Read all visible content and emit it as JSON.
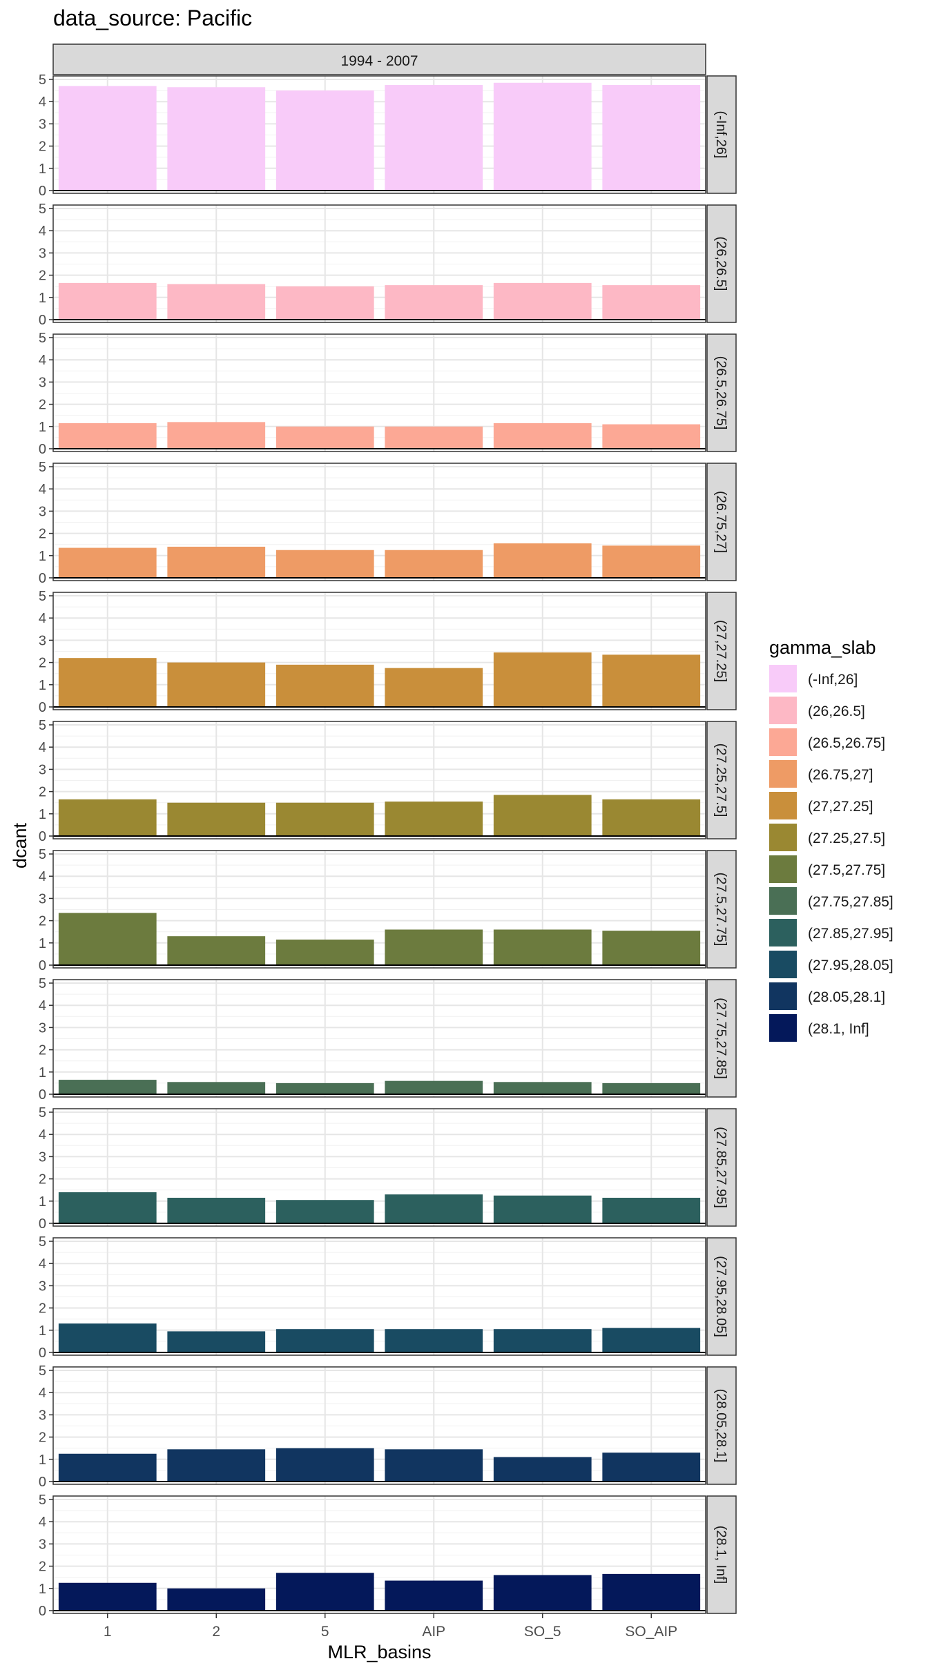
{
  "chart_data": {
    "type": "bar",
    "title": "data_source: Pacific",
    "column_strip": "1994 - 2007",
    "xlabel": "MLR_basins",
    "ylabel": "dcant",
    "categories": [
      "1",
      "2",
      "5",
      "AIP",
      "SO_5",
      "SO_AIP"
    ],
    "ylim": [
      0,
      5
    ],
    "yticks": [
      0,
      1,
      2,
      3,
      4,
      5
    ],
    "grid": true,
    "legend": {
      "title": "gamma_slab",
      "position": "right"
    },
    "series": [
      {
        "name": "(-Inf,26]",
        "color": "#F8CBF9",
        "values": [
          4.7,
          4.65,
          4.5,
          4.75,
          4.85,
          4.75
        ]
      },
      {
        "name": "(26,26.5]",
        "color": "#FDB8C5",
        "values": [
          1.65,
          1.6,
          1.5,
          1.55,
          1.65,
          1.55
        ]
      },
      {
        "name": "(26.5,26.75]",
        "color": "#FCA895",
        "values": [
          1.15,
          1.2,
          1.0,
          1.0,
          1.15,
          1.1
        ]
      },
      {
        "name": "(26.75,27]",
        "color": "#EE9B65",
        "values": [
          1.35,
          1.4,
          1.25,
          1.25,
          1.55,
          1.45
        ]
      },
      {
        "name": "(27,27.25]",
        "color": "#C98F3B",
        "values": [
          2.2,
          2.0,
          1.9,
          1.75,
          2.45,
          2.35
        ]
      },
      {
        "name": "(27.25,27.5]",
        "color": "#9A8832",
        "values": [
          1.65,
          1.5,
          1.5,
          1.55,
          1.85,
          1.65
        ]
      },
      {
        "name": "(27.5,27.75]",
        "color": "#6C7B3E",
        "values": [
          2.35,
          1.3,
          1.15,
          1.6,
          1.6,
          1.55
        ]
      },
      {
        "name": "(27.75,27.85]",
        "color": "#4A6F55",
        "values": [
          0.65,
          0.55,
          0.5,
          0.6,
          0.55,
          0.5
        ]
      },
      {
        "name": "(27.85,27.95]",
        "color": "#2C605E",
        "values": [
          1.4,
          1.15,
          1.05,
          1.3,
          1.25,
          1.15
        ]
      },
      {
        "name": "(27.95,28.05]",
        "color": "#194B62",
        "values": [
          1.3,
          0.95,
          1.05,
          1.05,
          1.05,
          1.1
        ]
      },
      {
        "name": "(28.05,28.1]",
        "color": "#113560",
        "values": [
          1.25,
          1.45,
          1.5,
          1.45,
          1.1,
          1.3
        ]
      },
      {
        "name": "(28.1, Inf]",
        "color": "#04185A",
        "values": [
          1.25,
          1.0,
          1.7,
          1.35,
          1.6,
          1.65
        ]
      }
    ]
  }
}
